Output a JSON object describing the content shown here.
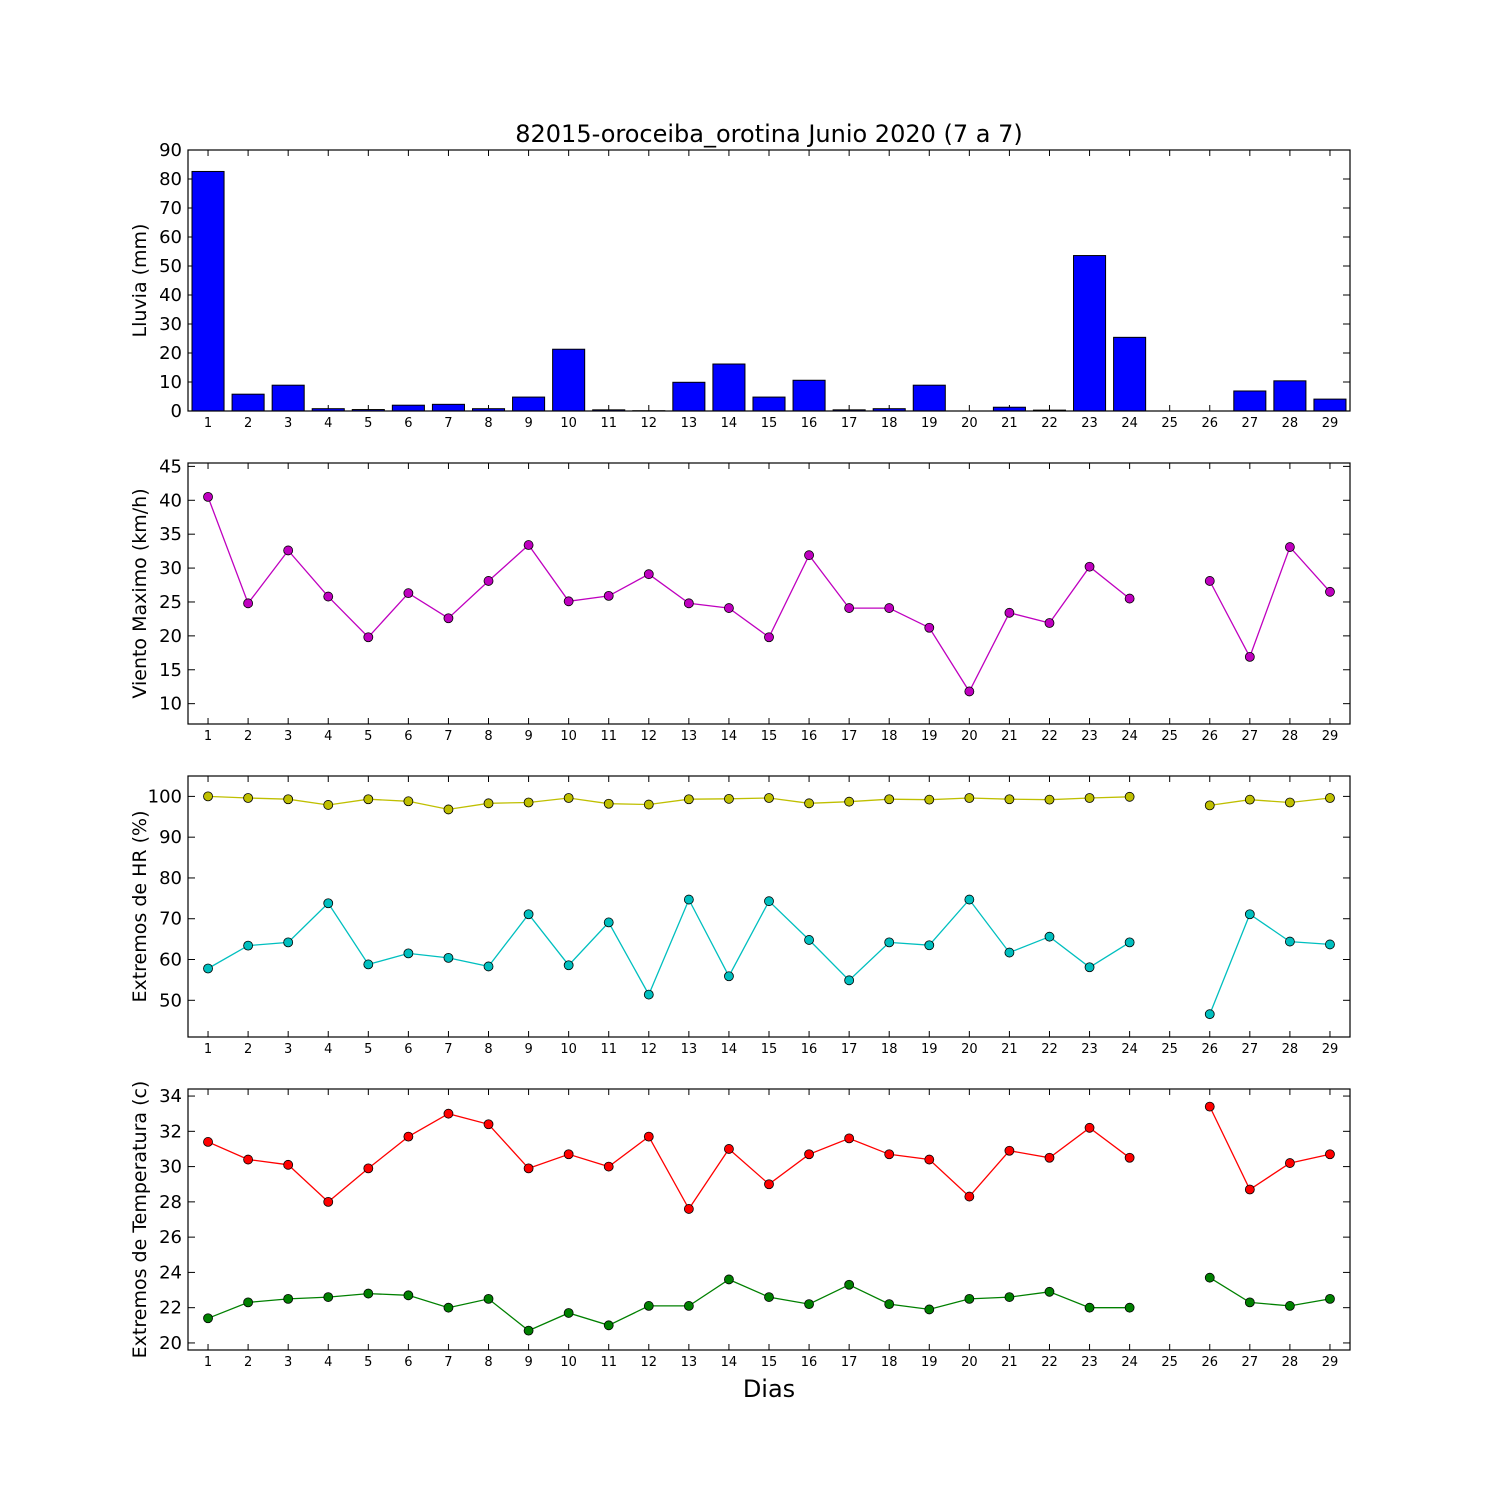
{
  "title": "82015-oroceiba_orotina Junio 2020  (7 a 7)",
  "xlabel": "Dias",
  "chart_data": [
    {
      "type": "bar",
      "ylabel": "Lluvia (mm)",
      "ylim": [
        0,
        90
      ],
      "yticks": [
        0,
        10,
        20,
        30,
        40,
        50,
        60,
        70,
        80,
        90
      ],
      "categories": [
        1,
        2,
        3,
        4,
        5,
        6,
        7,
        8,
        9,
        10,
        11,
        12,
        13,
        14,
        15,
        16,
        17,
        18,
        19,
        20,
        21,
        22,
        23,
        24,
        25,
        26,
        27,
        28,
        29
      ],
      "values": [
        82.6,
        5.8,
        8.9,
        0.8,
        0.5,
        2.0,
        2.3,
        0.8,
        4.8,
        21.3,
        0.4,
        0.1,
        9.9,
        16.2,
        4.8,
        10.6,
        0.4,
        0.8,
        8.9,
        0,
        1.3,
        0.3,
        53.6,
        25.4,
        0,
        0,
        6.9,
        10.4,
        4.1
      ],
      "colors": {
        "bar": "#0000ff"
      }
    },
    {
      "type": "line",
      "ylabel": "Viento Maximo (km/h)",
      "ylim": [
        7,
        45.5
      ],
      "yticks": [
        10,
        15,
        20,
        25,
        30,
        35,
        40,
        45
      ],
      "x": [
        1,
        2,
        3,
        4,
        5,
        6,
        7,
        8,
        9,
        10,
        11,
        12,
        13,
        14,
        15,
        16,
        17,
        18,
        19,
        20,
        21,
        22,
        23,
        24,
        25,
        26,
        27,
        28,
        29
      ],
      "series": [
        {
          "color": "#bf00bf",
          "values": [
            40.5,
            24.8,
            32.6,
            25.8,
            19.8,
            26.3,
            22.6,
            28.1,
            33.4,
            25.1,
            25.9,
            29.1,
            24.8,
            24.1,
            19.8,
            31.9,
            24.1,
            24.1,
            21.2,
            11.8,
            23.4,
            21.9,
            30.2,
            25.5,
            null,
            28.1,
            16.9,
            33.1,
            26.5
          ]
        }
      ]
    },
    {
      "type": "line",
      "ylabel": "Extremos de HR (%)",
      "ylim": [
        41,
        105
      ],
      "yticks": [
        50,
        60,
        70,
        80,
        90,
        100
      ],
      "x": [
        1,
        2,
        3,
        4,
        5,
        6,
        7,
        8,
        9,
        10,
        11,
        12,
        13,
        14,
        15,
        16,
        17,
        18,
        19,
        20,
        21,
        22,
        23,
        24,
        25,
        26,
        27,
        28,
        29
      ],
      "series": [
        {
          "color": "#bfbf00",
          "values": [
            100,
            99.6,
            99.3,
            97.9,
            99.3,
            98.8,
            96.8,
            98.3,
            98.5,
            99.6,
            98.2,
            98.0,
            99.3,
            99.4,
            99.6,
            98.3,
            98.7,
            99.3,
            99.2,
            99.6,
            99.3,
            99.2,
            99.6,
            99.9,
            null,
            97.8,
            99.2,
            98.5,
            99.6
          ]
        },
        {
          "color": "#00bfbf",
          "values": [
            57.8,
            63.4,
            64.2,
            73.8,
            58.8,
            61.5,
            60.4,
            58.3,
            71.1,
            58.6,
            69.1,
            51.4,
            74.7,
            55.9,
            74.3,
            64.8,
            54.9,
            64.2,
            63.5,
            74.7,
            61.7,
            65.6,
            58.1,
            64.2,
            null,
            46.6,
            71.1,
            64.4,
            63.7
          ]
        }
      ]
    },
    {
      "type": "line",
      "ylabel": "Extremos de Temperatura (c)",
      "ylim": [
        19.6,
        34.4
      ],
      "yticks": [
        20,
        22,
        24,
        26,
        28,
        30,
        32,
        34
      ],
      "x": [
        1,
        2,
        3,
        4,
        5,
        6,
        7,
        8,
        9,
        10,
        11,
        12,
        13,
        14,
        15,
        16,
        17,
        18,
        19,
        20,
        21,
        22,
        23,
        24,
        25,
        26,
        27,
        28,
        29
      ],
      "series": [
        {
          "color": "#ff0000",
          "values": [
            31.4,
            30.4,
            30.1,
            28.0,
            29.9,
            31.7,
            33.0,
            32.4,
            29.9,
            30.7,
            30.0,
            31.7,
            27.6,
            31.0,
            29.0,
            30.7,
            31.6,
            30.7,
            30.4,
            28.3,
            30.9,
            30.5,
            32.2,
            30.5,
            null,
            33.4,
            28.7,
            30.2,
            30.7
          ]
        },
        {
          "color": "#008000",
          "values": [
            21.4,
            22.3,
            22.5,
            22.6,
            22.8,
            22.7,
            22.0,
            22.5,
            20.7,
            21.7,
            21.0,
            22.1,
            22.1,
            23.6,
            22.6,
            22.2,
            23.3,
            22.2,
            21.9,
            22.5,
            22.6,
            22.9,
            22.0,
            22.0,
            null,
            23.7,
            22.3,
            22.1,
            22.5
          ]
        }
      ]
    }
  ]
}
